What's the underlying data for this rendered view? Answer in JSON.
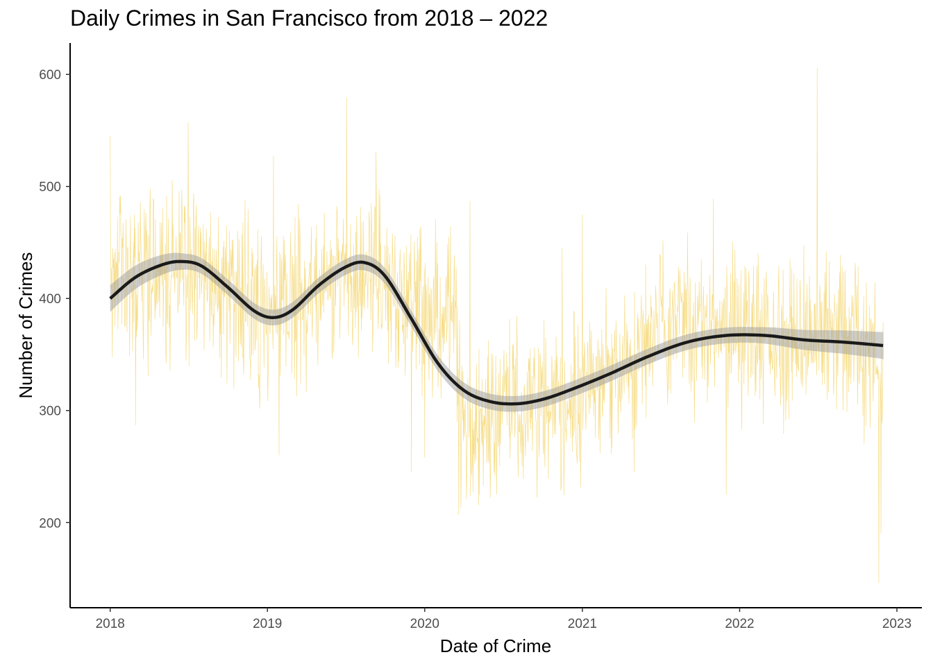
{
  "chart_data": {
    "type": "line",
    "title": "Daily Crimes in San Francisco from 2018 – 2022",
    "xlabel": "Date of Crime",
    "ylabel": "Number of Crimes",
    "x_range": [
      "2017-09-30",
      "2023-02-28"
    ],
    "y_range": [
      124,
      628
    ],
    "x_ticks": [
      {
        "label": "2018",
        "value": "2018-01-01"
      },
      {
        "label": "2019",
        "value": "2019-01-01"
      },
      {
        "label": "2020",
        "value": "2020-01-01"
      },
      {
        "label": "2021",
        "value": "2021-01-01"
      },
      {
        "label": "2022",
        "value": "2022-01-01"
      },
      {
        "label": "2023",
        "value": "2023-01-01"
      }
    ],
    "y_ticks": [
      200,
      300,
      400,
      500,
      600
    ],
    "grid": false,
    "legend": "none",
    "colors": {
      "daily": "#F5D97A",
      "smooth": "#1a1a1a",
      "band": "#9e9e9e"
    },
    "series": [
      {
        "style": "thin-line",
        "x_start": "2018-01-01",
        "x_end": "2022-12-01",
        "anchors": [
          {
            "x": "2018-01-01",
            "y": 415
          },
          {
            "x": "2018-03-15",
            "y": 420
          },
          {
            "x": "2018-06-15",
            "y": 432
          },
          {
            "x": "2018-09-15",
            "y": 410
          },
          {
            "x": "2018-12-15",
            "y": 385
          },
          {
            "x": "2019-03-01",
            "y": 392
          },
          {
            "x": "2019-05-15",
            "y": 415
          },
          {
            "x": "2019-08-15",
            "y": 435
          },
          {
            "x": "2019-11-01",
            "y": 400
          },
          {
            "x": "2020-01-15",
            "y": 385
          },
          {
            "x": "2020-03-10",
            "y": 380
          },
          {
            "x": "2020-04-01",
            "y": 270
          },
          {
            "x": "2020-06-01",
            "y": 300
          },
          {
            "x": "2020-09-01",
            "y": 305
          },
          {
            "x": "2020-12-01",
            "y": 310
          },
          {
            "x": "2021-03-01",
            "y": 330
          },
          {
            "x": "2021-06-15",
            "y": 370
          },
          {
            "x": "2021-09-15",
            "y": 375
          },
          {
            "x": "2022-01-15",
            "y": 365
          },
          {
            "x": "2022-05-01",
            "y": 360
          },
          {
            "x": "2022-08-15",
            "y": 370
          },
          {
            "x": "2022-11-20",
            "y": 340
          }
        ],
        "spikes": [
          {
            "x": "2018-01-01",
            "y": 545
          },
          {
            "x": "2018-03-01",
            "y": 287
          },
          {
            "x": "2018-07-01",
            "y": 557
          },
          {
            "x": "2019-01-15",
            "y": 527
          },
          {
            "x": "2019-01-28",
            "y": 260
          },
          {
            "x": "2019-07-04",
            "y": 579
          },
          {
            "x": "2019-09-10",
            "y": 531
          },
          {
            "x": "2019-12-01",
            "y": 245
          },
          {
            "x": "2020-01-01",
            "y": 258
          },
          {
            "x": "2020-03-20",
            "y": 207
          },
          {
            "x": "2020-04-15",
            "y": 487
          },
          {
            "x": "2020-06-01",
            "y": 222
          },
          {
            "x": "2020-11-15",
            "y": 445
          },
          {
            "x": "2021-01-01",
            "y": 475
          },
          {
            "x": "2021-05-01",
            "y": 245
          },
          {
            "x": "2021-11-01",
            "y": 489
          },
          {
            "x": "2021-12-01",
            "y": 225
          },
          {
            "x": "2022-06-30",
            "y": 606
          },
          {
            "x": "2022-11-20",
            "y": 146
          },
          {
            "x": "2022-11-25",
            "y": 190
          }
        ]
      },
      {
        "style": "smooth",
        "band_halfwidth": 7,
        "points": [
          {
            "x": "2018-01-01",
            "y": 400
          },
          {
            "x": "2018-03-01",
            "y": 419
          },
          {
            "x": "2018-05-01",
            "y": 430
          },
          {
            "x": "2018-06-15",
            "y": 433
          },
          {
            "x": "2018-08-01",
            "y": 429
          },
          {
            "x": "2018-10-01",
            "y": 410
          },
          {
            "x": "2018-12-01",
            "y": 389
          },
          {
            "x": "2019-01-15",
            "y": 383
          },
          {
            "x": "2019-03-01",
            "y": 390
          },
          {
            "x": "2019-05-01",
            "y": 412
          },
          {
            "x": "2019-07-01",
            "y": 428
          },
          {
            "x": "2019-08-15",
            "y": 432
          },
          {
            "x": "2019-10-01",
            "y": 420
          },
          {
            "x": "2019-12-01",
            "y": 382
          },
          {
            "x": "2020-02-01",
            "y": 342
          },
          {
            "x": "2020-04-01",
            "y": 318
          },
          {
            "x": "2020-06-01",
            "y": 308
          },
          {
            "x": "2020-08-01",
            "y": 306
          },
          {
            "x": "2020-10-01",
            "y": 310
          },
          {
            "x": "2020-12-01",
            "y": 318
          },
          {
            "x": "2021-03-01",
            "y": 332
          },
          {
            "x": "2021-06-01",
            "y": 348
          },
          {
            "x": "2021-09-01",
            "y": 361
          },
          {
            "x": "2021-12-01",
            "y": 367
          },
          {
            "x": "2022-03-01",
            "y": 367
          },
          {
            "x": "2022-06-01",
            "y": 363
          },
          {
            "x": "2022-09-01",
            "y": 361
          },
          {
            "x": "2022-11-30",
            "y": 358
          }
        ]
      }
    ]
  }
}
